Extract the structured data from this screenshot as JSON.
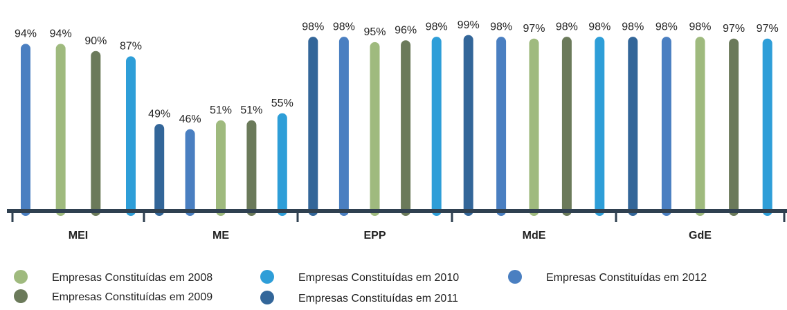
{
  "chart_data": {
    "type": "bar",
    "categories": [
      "MEI",
      "ME",
      "EPP",
      "MdE",
      "GdE"
    ],
    "ylim": [
      0,
      100
    ],
    "series": [
      {
        "name": "Empresas Constituídas em 2008",
        "color": "#9fba7e",
        "values": [
          94,
          51,
          95,
          97,
          98
        ],
        "value_labels": [
          "94%",
          "51%",
          "95%",
          "97%",
          "98%"
        ]
      },
      {
        "name": "Empresas Constituídas em 2009",
        "color": "#6b7a5a",
        "values": [
          90,
          51,
          96,
          98,
          97
        ],
        "value_labels": [
          "90%",
          "51%",
          "96%",
          "98%",
          "97%"
        ]
      },
      {
        "name": "Empresas Constituídas em 2010",
        "color": "#2e9ed8",
        "values": [
          87,
          55,
          98,
          98,
          97
        ],
        "value_labels": [
          "87%",
          "55%",
          "98%",
          "98%",
          "97%"
        ]
      },
      {
        "name": "Empresas Constituídas em 2011",
        "color": "#336699",
        "values": [
          null,
          49,
          98,
          99,
          98
        ],
        "value_labels": [
          null,
          "49%",
          "98%",
          "99%",
          "98%"
        ]
      },
      {
        "name": "Empresas Constituídas em 2012",
        "color": "#4a7fc1",
        "values": [
          94,
          46,
          98,
          98,
          98
        ],
        "value_labels": [
          "94%",
          "46%",
          "98%",
          "98%",
          "98%"
        ]
      }
    ]
  }
}
